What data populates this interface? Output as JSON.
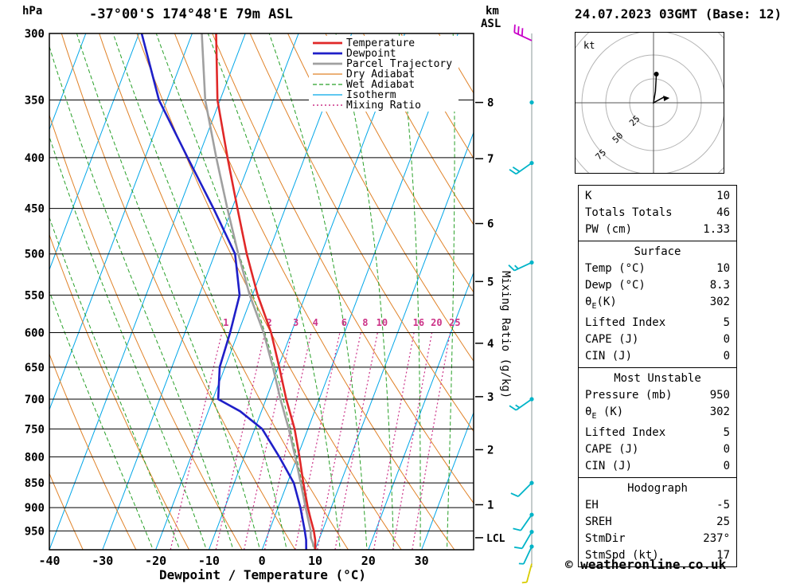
{
  "header": {
    "pressure_unit": "hPa",
    "station": "-37°00'S 174°48'E 79m ASL",
    "datetime": "24.07.2023 03GMT (Base: 12)",
    "km_label": "km",
    "asl_label": "ASL"
  },
  "axes": {
    "pressure_ticks": [
      300,
      350,
      400,
      450,
      500,
      550,
      600,
      650,
      700,
      750,
      800,
      850,
      900,
      950
    ],
    "temp_ticks": [
      -40,
      -30,
      -20,
      -10,
      0,
      10,
      20,
      30
    ],
    "xlabel": "Dewpoint / Temperature (°C)",
    "right_axis_label": "Mixing Ratio (g/kg)",
    "km_ticks": [
      {
        "km": 8,
        "p": 352
      },
      {
        "km": 7,
        "p": 401
      },
      {
        "km": 6,
        "p": 466
      },
      {
        "km": 5,
        "p": 533
      },
      {
        "km": 4,
        "p": 615
      },
      {
        "km": 3,
        "p": 696
      },
      {
        "km": 2,
        "p": 787
      },
      {
        "km": 1,
        "p": 894
      }
    ],
    "lcl": {
      "label": "LCL",
      "p": 965
    }
  },
  "legend": [
    {
      "label": "Temperature",
      "color": "#e02828",
      "width": 2.8,
      "dash": "none"
    },
    {
      "label": "Dewpoint",
      "color": "#1f1fc8",
      "width": 2.8,
      "dash": "none"
    },
    {
      "label": "Parcel Trajectory",
      "color": "#a0a0a0",
      "width": 2.8,
      "dash": "none"
    },
    {
      "label": "Dry Adiabat",
      "color": "#e08228",
      "width": 1.2,
      "dash": "none"
    },
    {
      "label": "Wet Adiabat",
      "color": "#28a028",
      "width": 1.2,
      "dash": "5,3"
    },
    {
      "label": "Isotherm",
      "color": "#00a6e8",
      "width": 1.2,
      "dash": "none"
    },
    {
      "label": "Mixing Ratio",
      "color": "#cc3388",
      "width": 1.4,
      "dash": "2,3"
    }
  ],
  "chart_data": {
    "type": "skewt_log_p",
    "title": "-37°00'S 174°48'E 79m ASL",
    "valid": "24.07.2023 03GMT (Base: 12)",
    "pressure_range_hpa": [
      300,
      992
    ],
    "temp_axis_range_c": [
      -40,
      40
    ],
    "isotherm_step": 10,
    "dry_adiabat_theta_k": {
      "min": 230,
      "max": 400,
      "step": 10
    },
    "wet_adiabat_thetaw_c": {
      "min": -20,
      "max": 45,
      "step": 5
    },
    "mixing_ratio_lines": [
      1,
      2,
      3,
      4,
      6,
      8,
      10,
      16,
      20,
      25
    ],
    "colors": {
      "temperature": "#e02828",
      "dewpoint": "#1f1fc8",
      "parcel": "#a0a0a0",
      "dry_adiabat": "#e08228",
      "wet_adiabat": "#28a028",
      "isotherm": "#00a6e8",
      "mixing_ratio": "#cc3388",
      "pressure_line": "#000000",
      "wind_dot": "#00b4c8"
    },
    "temperature_profile": [
      [
        992,
        10
      ],
      [
        970,
        9.3
      ],
      [
        950,
        8.4
      ],
      [
        925,
        7.0
      ],
      [
        900,
        5.6
      ],
      [
        850,
        3.0
      ],
      [
        800,
        0.4
      ],
      [
        750,
        -2.5
      ],
      [
        700,
        -6.2
      ],
      [
        650,
        -9.8
      ],
      [
        600,
        -13.8
      ],
      [
        550,
        -19.0
      ],
      [
        500,
        -24.0
      ],
      [
        450,
        -29.0
      ],
      [
        400,
        -34.5
      ],
      [
        350,
        -40.5
      ],
      [
        300,
        -45.5
      ]
    ],
    "dewpoint_profile": [
      [
        992,
        8.3
      ],
      [
        970,
        7.6
      ],
      [
        950,
        6.7
      ],
      [
        900,
        4.2
      ],
      [
        850,
        1.2
      ],
      [
        800,
        -3.4
      ],
      [
        750,
        -8.6
      ],
      [
        720,
        -14.0
      ],
      [
        700,
        -19.0
      ],
      [
        650,
        -21.0
      ],
      [
        600,
        -21.5
      ],
      [
        550,
        -22.4
      ],
      [
        500,
        -26.2
      ],
      [
        450,
        -33.5
      ],
      [
        400,
        -42.0
      ],
      [
        350,
        -51.5
      ],
      [
        300,
        -59.5
      ]
    ],
    "parcel_profile": [
      [
        992,
        10
      ],
      [
        965,
        8.3
      ],
      [
        950,
        7.8
      ],
      [
        900,
        5.2
      ],
      [
        850,
        2.5
      ],
      [
        800,
        -0.4
      ],
      [
        750,
        -3.6
      ],
      [
        700,
        -7.3
      ],
      [
        650,
        -11.0
      ],
      [
        600,
        -15.2
      ],
      [
        550,
        -20.5
      ],
      [
        500,
        -25.6
      ],
      [
        450,
        -30.9
      ],
      [
        400,
        -36.6
      ],
      [
        350,
        -42.8
      ],
      [
        300,
        -48.2
      ]
    ],
    "wind_station_dots_hpa": [
      352,
      405,
      510,
      700,
      850,
      915,
      952,
      985
    ],
    "winds": [
      {
        "p": 305,
        "dir": 295,
        "spd": 30,
        "color": "#c800c8"
      },
      {
        "p": 405,
        "dir": 235,
        "spd": 20,
        "color": "#00b4c8"
      },
      {
        "p": 510,
        "dir": 245,
        "spd": 15,
        "color": "#00b4c8"
      },
      {
        "p": 700,
        "dir": 235,
        "spd": 15,
        "color": "#00b4c8"
      },
      {
        "p": 850,
        "dir": 225,
        "spd": 10,
        "color": "#00b4c8"
      },
      {
        "p": 915,
        "dir": 215,
        "spd": 10,
        "color": "#00b4c8"
      },
      {
        "p": 952,
        "dir": 210,
        "spd": 10,
        "color": "#00b4c8"
      },
      {
        "p": 985,
        "dir": 205,
        "spd": 5,
        "color": "#00b4c8"
      },
      {
        "p": 1025,
        "dir": 195,
        "spd": 5,
        "color": "#d8cc00"
      }
    ]
  },
  "hodograph": {
    "unit_label": "kt",
    "ring_step_kt": 25,
    "ring_labels": [
      "25",
      "50",
      "75"
    ],
    "trace_kt": [
      {
        "u": 3,
        "v": 30
      },
      {
        "u": 2,
        "v": 12
      },
      {
        "u": 0,
        "v": 0
      },
      {
        "u": 11,
        "v": 6
      }
    ],
    "storm_motion_marker_kt": {
      "u": 13.5,
      "v": 5
    }
  },
  "stats": {
    "sections": [
      {
        "title": "",
        "rows": [
          [
            "K",
            "10"
          ],
          [
            "Totals Totals",
            "46"
          ],
          [
            "PW (cm)",
            "1.33"
          ]
        ]
      },
      {
        "title": "Surface",
        "rows": [
          [
            "Temp (°C)",
            "10"
          ],
          [
            "Dewp (°C)",
            "8.3"
          ],
          [
            "θE(K)",
            "302"
          ],
          [
            "Lifted Index",
            "5"
          ],
          [
            "CAPE (J)",
            "0"
          ],
          [
            "CIN (J)",
            "0"
          ]
        ]
      },
      {
        "title": "Most Unstable",
        "rows": [
          [
            "Pressure (mb)",
            "950"
          ],
          [
            "θE (K)",
            "302"
          ],
          [
            "Lifted Index",
            "5"
          ],
          [
            "CAPE (J)",
            "0"
          ],
          [
            "CIN (J)",
            "0"
          ]
        ]
      },
      {
        "title": "Hodograph",
        "rows": [
          [
            "EH",
            "-5"
          ],
          [
            "SREH",
            "25"
          ],
          [
            "StmDir",
            "237°"
          ],
          [
            "StmSpd (kt)",
            "17"
          ]
        ]
      }
    ]
  },
  "footer": {
    "credit": "© weatheronline.co.uk"
  }
}
